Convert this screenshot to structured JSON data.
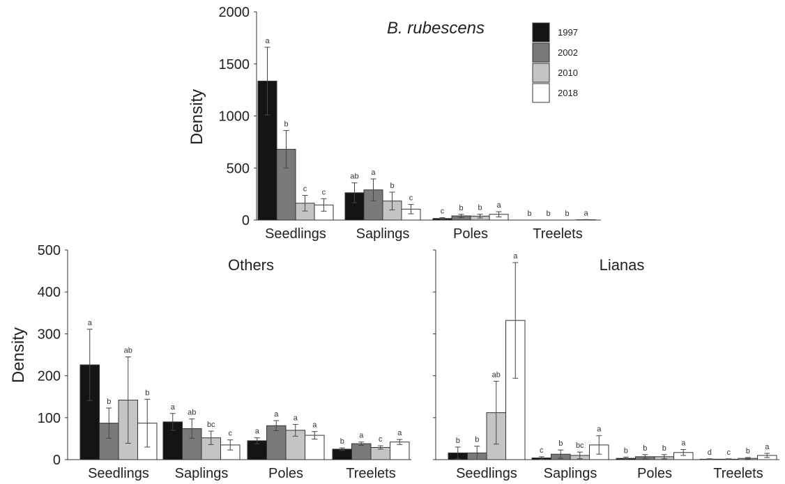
{
  "colors": {
    "1997": "#141414",
    "2002": "#7a7a7a",
    "2010": "#c4c4c4",
    "2018": "#ffffff",
    "axis": "#333333",
    "error": "#444444"
  },
  "legend": [
    "1997",
    "2002",
    "2010",
    "2018"
  ],
  "chart_data": [
    {
      "type": "bar",
      "title": "B. rubescens",
      "ylabel": "Density",
      "ylim": [
        0,
        2000
      ],
      "yticks": [
        "0",
        "500",
        "1000",
        "1500",
        "2000"
      ],
      "ytick_values": [
        0,
        500,
        1000,
        1500,
        2000
      ],
      "categories": [
        "Seedlings",
        "Saplings",
        "Poles",
        "Treelets"
      ],
      "series": [
        {
          "name": "1997",
          "values": [
            1335,
            262,
            15,
            0
          ],
          "errors": [
            325,
            95,
            8,
            0
          ],
          "letters": [
            "a",
            "ab",
            "c",
            "b"
          ]
        },
        {
          "name": "2002",
          "values": [
            680,
            290,
            40,
            0
          ],
          "errors": [
            180,
            105,
            15,
            0
          ],
          "letters": [
            "b",
            "a",
            "b",
            "b"
          ]
        },
        {
          "name": "2010",
          "values": [
            162,
            183,
            38,
            0
          ],
          "errors": [
            75,
            85,
            18,
            0
          ],
          "letters": [
            "c",
            "b",
            "b",
            "b"
          ]
        },
        {
          "name": "2018",
          "values": [
            145,
            105,
            55,
            3
          ],
          "errors": [
            60,
            45,
            25,
            2
          ],
          "letters": [
            "c",
            "c",
            "a",
            "a"
          ]
        }
      ],
      "legend": "top-right",
      "grid": false
    },
    {
      "type": "bar",
      "title": "Others",
      "ylabel": "Density",
      "ylim": [
        0,
        500
      ],
      "yticks": [
        "0",
        "100",
        "200",
        "300",
        "400",
        "500"
      ],
      "ytick_values": [
        0,
        100,
        200,
        300,
        400,
        500
      ],
      "categories": [
        "Seedlings",
        "Saplings",
        "Poles",
        "Treelets"
      ],
      "series": [
        {
          "name": "1997",
          "values": [
            226,
            90,
            45,
            25
          ],
          "errors": [
            85,
            20,
            7,
            3
          ],
          "letters": [
            "a",
            "a",
            "a",
            "b"
          ]
        },
        {
          "name": "2002",
          "values": [
            87,
            74,
            81,
            38
          ],
          "errors": [
            36,
            23,
            12,
            4
          ],
          "letters": [
            "b",
            "ab",
            "a",
            "a"
          ]
        },
        {
          "name": "2010",
          "values": [
            142,
            52,
            70,
            29
          ],
          "errors": [
            103,
            16,
            14,
            4
          ],
          "letters": [
            "ab",
            "bc",
            "a",
            "c"
          ]
        },
        {
          "name": "2018",
          "values": [
            87,
            35,
            58,
            42
          ],
          "errors": [
            57,
            12,
            9,
            6
          ],
          "letters": [
            "b",
            "c",
            "a",
            "a"
          ]
        }
      ],
      "grid": false
    },
    {
      "type": "bar",
      "title": "Lianas",
      "ylabel": "",
      "ylim": [
        0,
        500
      ],
      "yticks": [
        "",
        "",
        "",
        "",
        "",
        ""
      ],
      "ytick_values": [
        0,
        100,
        200,
        300,
        400,
        500
      ],
      "categories": [
        "Seedlings",
        "Saplings",
        "Poles",
        "Treelets"
      ],
      "series": [
        {
          "name": "1997",
          "values": [
            16,
            4,
            3,
            1
          ],
          "errors": [
            14,
            3,
            3,
            1
          ],
          "letters": [
            "b",
            "c",
            "b",
            "d"
          ]
        },
        {
          "name": "2002",
          "values": [
            16,
            13,
            7,
            1
          ],
          "errors": [
            16,
            10,
            5,
            1
          ],
          "letters": [
            "b",
            "b",
            "b",
            "c"
          ]
        },
        {
          "name": "2010",
          "values": [
            112,
            10,
            7,
            3
          ],
          "errors": [
            75,
            8,
            5,
            2
          ],
          "letters": [
            "ab",
            "bc",
            "b",
            "b"
          ]
        },
        {
          "name": "2018",
          "values": [
            332,
            35,
            17,
            10
          ],
          "errors": [
            138,
            22,
            7,
            5
          ],
          "letters": [
            "a",
            "a",
            "a",
            "a"
          ]
        }
      ],
      "grid": false
    }
  ]
}
